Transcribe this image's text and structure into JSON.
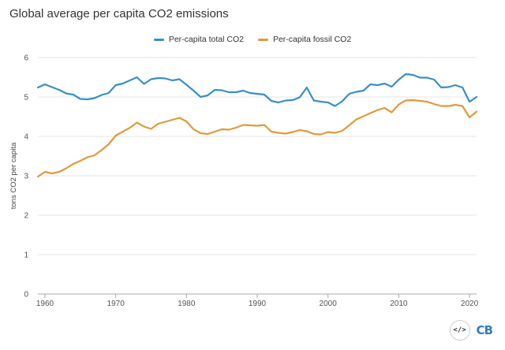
{
  "chart_data": {
    "type": "line",
    "title": "Global average per capita CO2 emissions",
    "xlabel": "",
    "ylabel": "tons CO2 per capita",
    "xlim": [
      1959,
      2021
    ],
    "ylim": [
      0,
      6
    ],
    "yticks": [
      0,
      1,
      2,
      3,
      4,
      5,
      6
    ],
    "xticks": [
      1960,
      1970,
      1980,
      1990,
      2000,
      2010,
      2020
    ],
    "x": [
      1959,
      1960,
      1961,
      1962,
      1963,
      1964,
      1965,
      1966,
      1967,
      1968,
      1969,
      1970,
      1971,
      1972,
      1973,
      1974,
      1975,
      1976,
      1977,
      1978,
      1979,
      1980,
      1981,
      1982,
      1983,
      1984,
      1985,
      1986,
      1987,
      1988,
      1989,
      1990,
      1991,
      1992,
      1993,
      1994,
      1995,
      1996,
      1997,
      1998,
      1999,
      2000,
      2001,
      2002,
      2003,
      2004,
      2005,
      2006,
      2007,
      2008,
      2009,
      2010,
      2011,
      2012,
      2013,
      2014,
      2015,
      2016,
      2017,
      2018,
      2019,
      2020,
      2021
    ],
    "series": [
      {
        "name": "Per-capita total CO2",
        "color": "#3a8fc8",
        "values": [
          5.24,
          5.32,
          5.25,
          5.18,
          5.09,
          5.06,
          4.95,
          4.94,
          4.97,
          5.05,
          5.1,
          5.3,
          5.34,
          5.42,
          5.5,
          5.33,
          5.45,
          5.48,
          5.47,
          5.42,
          5.45,
          5.31,
          5.16,
          5.0,
          5.04,
          5.18,
          5.17,
          5.12,
          5.12,
          5.16,
          5.1,
          5.08,
          5.06,
          4.9,
          4.86,
          4.91,
          4.92,
          4.99,
          5.24,
          4.91,
          4.88,
          4.86,
          4.77,
          4.89,
          5.08,
          5.13,
          5.16,
          5.32,
          5.3,
          5.34,
          5.26,
          5.44,
          5.58,
          5.56,
          5.49,
          5.49,
          5.44,
          5.24,
          5.25,
          5.3,
          5.24,
          4.88,
          5.0
        ]
      },
      {
        "name": "Per-capita fossil CO2",
        "color": "#e09a3c",
        "values": [
          2.98,
          3.1,
          3.06,
          3.1,
          3.19,
          3.3,
          3.38,
          3.47,
          3.52,
          3.65,
          3.8,
          4.02,
          4.12,
          4.22,
          4.35,
          4.25,
          4.19,
          4.32,
          4.37,
          4.42,
          4.47,
          4.38,
          4.18,
          4.08,
          4.06,
          4.12,
          4.18,
          4.17,
          4.22,
          4.29,
          4.28,
          4.27,
          4.29,
          4.12,
          4.09,
          4.07,
          4.11,
          4.16,
          4.13,
          4.06,
          4.05,
          4.11,
          4.09,
          4.14,
          4.28,
          4.43,
          4.51,
          4.59,
          4.67,
          4.72,
          4.61,
          4.81,
          4.91,
          4.92,
          4.9,
          4.88,
          4.82,
          4.77,
          4.77,
          4.8,
          4.77,
          4.48,
          4.63
        ]
      }
    ]
  },
  "branding": {
    "code_icon_text": "</>",
    "logo_text": "CB"
  }
}
